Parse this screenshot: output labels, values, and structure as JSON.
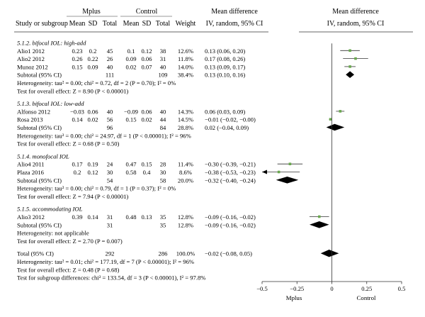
{
  "chart_data": {
    "type": "forest",
    "columns": {
      "study": "Study or subgroup",
      "group1": "Mplus",
      "group2": "Control",
      "mean": "Mean",
      "sd": "SD",
      "total": "Total",
      "weight": "Weight",
      "md_title": "Mean difference",
      "md_sub": "IV, random, 95% CI",
      "plot_title": "Mean difference",
      "plot_sub": "IV, random, 95% CI"
    },
    "x_axis": {
      "range": [
        -0.5,
        0.5
      ],
      "ticks": [
        -0.5,
        -0.25,
        0,
        0.25,
        0.5
      ],
      "tick_labels": [
        "−0.5",
        "−0.25",
        "0",
        "0.25",
        "0.5"
      ],
      "left_label": "Mplus",
      "right_label": "Control"
    },
    "rows": [
      {
        "kind": "header",
        "label": "5.1.2. bifocal IOL: high-add"
      },
      {
        "kind": "study",
        "label": "Alio1 2012",
        "m1": "0.23",
        "sd1": "0.2",
        "n1": "45",
        "m2": "0.1",
        "sd2": "0.12",
        "n2": "38",
        "weight": "12.6%",
        "ci": "0.13 (0.06, 0.20)",
        "est": 0.13,
        "lo": 0.06,
        "hi": 0.2
      },
      {
        "kind": "study",
        "label": "Alio2 2012",
        "m1": "0.26",
        "sd1": "0.22",
        "n1": "26",
        "m2": "0.09",
        "sd2": "0.06",
        "n2": "31",
        "weight": "11.8%",
        "ci": "0.17 (0.08, 0.26)",
        "est": 0.17,
        "lo": 0.08,
        "hi": 0.26
      },
      {
        "kind": "study",
        "label": "Munoz 2012",
        "m1": "0.15",
        "sd1": "0.09",
        "n1": "40",
        "m2": "0.02",
        "sd2": "0.07",
        "n2": "40",
        "weight": "14.0%",
        "ci": "0.13 (0.09, 0.17)",
        "est": 0.13,
        "lo": 0.09,
        "hi": 0.17
      },
      {
        "kind": "subtotal",
        "label": "Subtotal (95% CI)",
        "n1": "111",
        "n2": "109",
        "weight": "38.4%",
        "ci": "0.13 (0.10, 0.16)",
        "est": 0.13,
        "lo": 0.1,
        "hi": 0.16
      },
      {
        "kind": "note",
        "label": "Heterogeneity: tau² = 0.00; chi² = 0.72, df = 2 (P = 0.70); I² = 0%"
      },
      {
        "kind": "note",
        "label": "Test for overall effect: Z = 8.90 (P < 0.00001)"
      },
      {
        "kind": "gap"
      },
      {
        "kind": "header",
        "label": "5.1.3. bifocal IOL: low-add"
      },
      {
        "kind": "study",
        "label": "Alfonso 2012",
        "m1": "−0.03",
        "sd1": "0.06",
        "n1": "40",
        "m2": "−0.09",
        "sd2": "0.06",
        "n2": "40",
        "weight": "14.3%",
        "ci": "0.06 (0.03, 0.09)",
        "est": 0.06,
        "lo": 0.03,
        "hi": 0.09
      },
      {
        "kind": "study",
        "label": "Rosa 2013",
        "m1": "0.14",
        "sd1": "0.02",
        "n1": "56",
        "m2": "0.15",
        "sd2": "0.02",
        "n2": "44",
        "weight": "14.5%",
        "ci": "−0.01 (−0.02, −0.00)",
        "est": -0.01,
        "lo": -0.02,
        "hi": -0.0
      },
      {
        "kind": "subtotal",
        "label": "Subtotal (95% CI)",
        "n1": "96",
        "n2": "84",
        "weight": "28.8%",
        "ci": "0.02 (−0.04, 0.09)",
        "est": 0.02,
        "lo": -0.04,
        "hi": 0.09
      },
      {
        "kind": "note",
        "label": "Heterogeneity: tau² = 0.00; chi² = 24.97, df = 1 (P < 0.00001); I² = 96%"
      },
      {
        "kind": "note",
        "label": "Test for overall effect: Z = 0.68 (P = 0.50)"
      },
      {
        "kind": "gap"
      },
      {
        "kind": "header",
        "label": "5.1.4. monofocal IOL"
      },
      {
        "kind": "study",
        "label": "Alio4 2011",
        "m1": "0.17",
        "sd1": "0.19",
        "n1": "24",
        "m2": "0.47",
        "sd2": "0.15",
        "n2": "28",
        "weight": "11.4%",
        "ci": "−0.30 (−0.39, −0.21)",
        "est": -0.3,
        "lo": -0.39,
        "hi": -0.21
      },
      {
        "kind": "study",
        "label": "Plaza 2016",
        "m1": "0.2",
        "sd1": "0.12",
        "n1": "30",
        "m2": "0.58",
        "sd2": "0.4",
        "n2": "30",
        "weight": "8.6%",
        "ci": "−0.38 (−0.53, −0.23)",
        "est": -0.38,
        "lo": -0.53,
        "hi": -0.23
      },
      {
        "kind": "subtotal",
        "label": "Subtotal (95% CI)",
        "n1": "54",
        "n2": "58",
        "weight": "20.0%",
        "ci": "−0.32 (−0.40, −0.24)",
        "est": -0.32,
        "lo": -0.4,
        "hi": -0.24
      },
      {
        "kind": "note",
        "label": "Heterogeneity: tau² = 0.00; chi² = 0.79, df = 1 (P = 0.37); I² = 0%"
      },
      {
        "kind": "note",
        "label": "Test for overall effect: Z = 7.94 (P < 0.00001)"
      },
      {
        "kind": "gap"
      },
      {
        "kind": "header",
        "label": "5.1.5. accommodating IOL"
      },
      {
        "kind": "study",
        "label": "Alio3 2012",
        "m1": "0.39",
        "sd1": "0.14",
        "n1": "31",
        "m2": "0.48",
        "sd2": "0.13",
        "n2": "35",
        "weight": "12.8%",
        "ci": "−0.09 (−0.16, −0.02)",
        "est": -0.09,
        "lo": -0.16,
        "hi": -0.02
      },
      {
        "kind": "subtotal",
        "label": "Subtotal (95% CI)",
        "n1": "31",
        "n2": "35",
        "weight": "12.8%",
        "ci": "−0.09 (−0.16, −0.02)",
        "est": -0.09,
        "lo": -0.16,
        "hi": -0.02
      },
      {
        "kind": "note",
        "label": "Heterogeneity: not applicable"
      },
      {
        "kind": "note",
        "label": "Test for overall effect: Z = 2.70 (P = 0.007)"
      },
      {
        "kind": "gap"
      },
      {
        "kind": "total",
        "label": "Total (95% CI)",
        "n1": "292",
        "n2": "286",
        "weight": "100.0%",
        "ci": "−0.02 (−0.08, 0.05)",
        "est": -0.02,
        "lo": -0.08,
        "hi": 0.05
      },
      {
        "kind": "note",
        "label": "Heterogeneity: tau² = 0.01; chi² = 177.19, df = 7 (P < 0.00001); I² = 96%"
      },
      {
        "kind": "note",
        "label": "Test for overall effect: Z = 0.48 (P = 0.68)"
      },
      {
        "kind": "note",
        "label": "Test for subgroup differences: chi² = 133.54, df = 3 (P < 0.00001), I² = 97.8%"
      }
    ],
    "colors": {
      "marker": "#6aa84f",
      "line": "#333333",
      "diamond": "#000000",
      "arrow": "#000000"
    }
  }
}
